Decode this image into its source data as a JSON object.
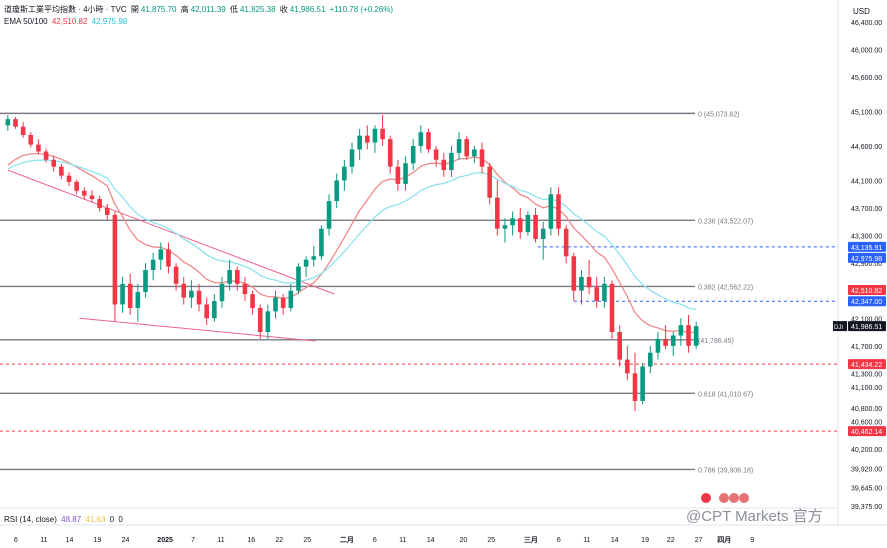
{
  "header": {
    "symbol_line": "道瓊斯工業平均指數 · 4小時 · TVC",
    "open_label": "開",
    "open": "41,875.70",
    "high_label": "高",
    "high": "42,011.39",
    "low_label": "低",
    "low": "41,825.38",
    "close_label": "收",
    "close": "41,986.51",
    "change": "+110.78 (+0.26%)",
    "ema_label": "EMA 50/100",
    "ema50": "42,510.82",
    "ema100": "42,975.98"
  },
  "currency": "USD",
  "rsi": {
    "label": "RSI (14, close)",
    "value1": "48.87",
    "value2": "41.63",
    "zero1": "0",
    "zero2": "0"
  },
  "watermark": "@CPT Markets 官方",
  "colors": {
    "up": "#089981",
    "down": "#f23645",
    "ema50": "#ef8a8a",
    "ema100": "#8fe3ef",
    "blue_tag": "#2962ff",
    "red_tag": "#f23645",
    "dark_tag": "#131722",
    "level": "#787b86"
  },
  "chart_data": {
    "type": "candlestick",
    "title": "",
    "xlabel": "",
    "ylabel": "",
    "ylim": [
      39300,
      46500
    ],
    "grid": false,
    "y_ticks": [
      "46,400.00",
      "46,000.00",
      "45,600.00",
      "45,100.00",
      "44,600.00",
      "44,100.00",
      "43,700.00",
      "43,300.00",
      "42,900.00",
      "42,500.00",
      "42,100.00",
      "41,700.00",
      "41,300.00",
      "41,100.00",
      "40,800.00",
      "40,600.00",
      "40,200.00",
      "39,920.00",
      "39,645.00",
      "39,375.00"
    ],
    "y_tick_values": [
      46400,
      46000,
      45600,
      45100,
      44600,
      44100,
      43700,
      43300,
      42900,
      42500,
      42100,
      41700,
      41300,
      41100,
      40800,
      40600,
      40200,
      39920,
      39645,
      39375
    ],
    "x_ticks": [
      "6",
      "11",
      "14",
      "19",
      "24",
      "2025",
      "7",
      "11",
      "16",
      "22",
      "25",
      "二月",
      "6",
      "11",
      "14",
      "20",
      "25",
      "三月",
      "6",
      "11",
      "14",
      "19",
      "22",
      "27",
      "四月",
      "9"
    ],
    "x_tick_index": [
      6,
      18,
      29,
      41,
      53,
      70,
      82,
      94,
      107,
      119,
      131,
      148,
      160,
      172,
      184,
      198,
      210,
      227,
      239,
      251,
      263,
      276,
      287,
      299,
      310,
      322
    ],
    "fib_levels": [
      {
        "ratio": "0",
        "value": 45073.62,
        "label": "0 (45,073.62)"
      },
      {
        "ratio": "0.236",
        "value": 43522.07,
        "label": "0.236 (43,522.07)"
      },
      {
        "ratio": "0.382",
        "value": 42562.22,
        "label": "0.382 (42,562.22)"
      },
      {
        "ratio": "0.5",
        "value": 41786.45,
        "label": "(41,786.45)"
      },
      {
        "ratio": "0.618",
        "value": 41010.67,
        "label": "0.618 (41,010.67)"
      },
      {
        "ratio": "0.786",
        "value": 39906.18,
        "label": "0.786 (39,906.18)"
      }
    ],
    "price_tags": [
      {
        "value": 43135.91,
        "label": "43,135.91",
        "kind": "blue"
      },
      {
        "value": 42975.98,
        "label": "42,975.98",
        "kind": "blue"
      },
      {
        "value": 42510.82,
        "label": "42,510.82",
        "kind": "red"
      },
      {
        "value": 42347.0,
        "label": "42,347.00",
        "kind": "blue"
      },
      {
        "value": 41986.51,
        "label": "41,986.51",
        "kind": "dark",
        "symbol": "DJI"
      },
      {
        "value": 41434.22,
        "label": "41,434.22",
        "kind": "red"
      },
      {
        "value": 40462.14,
        "label": "40,462.14",
        "kind": "red"
      }
    ],
    "dashed_levels": [
      {
        "value": 43135.91,
        "from": 220,
        "color": "blue"
      },
      {
        "value": 42347.0,
        "from": 235,
        "color": "blue"
      },
      {
        "value": 41434.22,
        "from": 0,
        "color": "red"
      },
      {
        "value": 40462.14,
        "from": 0,
        "color": "red"
      }
    ],
    "channel_lines": [
      {
        "x1": 0,
        "y1": 44250,
        "x2": 120,
        "y2": 42450
      },
      {
        "x1": 30,
        "y1": 42100,
        "x2": 112,
        "y2": 41770
      }
    ],
    "candles": [
      [
        44900,
        45050,
        44820,
        44990
      ],
      [
        44990,
        45020,
        44850,
        44880
      ],
      [
        44880,
        44950,
        44720,
        44760
      ],
      [
        44760,
        44800,
        44580,
        44620
      ],
      [
        44620,
        44700,
        44480,
        44520
      ],
      [
        44520,
        44560,
        44360,
        44400
      ],
      [
        44400,
        44460,
        44230,
        44300
      ],
      [
        44300,
        44340,
        44120,
        44170
      ],
      [
        44170,
        44220,
        44020,
        44080
      ],
      [
        44080,
        44110,
        43900,
        43950
      ],
      [
        43950,
        44000,
        43820,
        43880
      ],
      [
        43880,
        43960,
        43780,
        43830
      ],
      [
        43830,
        43880,
        43650,
        43700
      ],
      [
        43700,
        43760,
        43520,
        43600
      ],
      [
        43600,
        43650,
        42050,
        42300
      ],
      [
        42300,
        42700,
        42180,
        42600
      ],
      [
        42600,
        42750,
        42150,
        42250
      ],
      [
        42250,
        42600,
        42050,
        42480
      ],
      [
        42480,
        42900,
        42400,
        42800
      ],
      [
        42800,
        43050,
        42650,
        42950
      ],
      [
        42950,
        43200,
        42800,
        43100
      ],
      [
        43100,
        43200,
        42750,
        42850
      ],
      [
        42850,
        42900,
        42500,
        42600
      ],
      [
        42600,
        42700,
        42300,
        42400
      ],
      [
        42400,
        42650,
        42250,
        42500
      ],
      [
        42500,
        42600,
        42200,
        42300
      ],
      [
        42300,
        42400,
        42000,
        42100
      ],
      [
        42100,
        42450,
        42050,
        42350
      ],
      [
        42350,
        42700,
        42250,
        42600
      ],
      [
        42600,
        42950,
        42500,
        42800
      ],
      [
        42800,
        42850,
        42500,
        42600
      ],
      [
        42600,
        42700,
        42350,
        42450
      ],
      [
        42450,
        42500,
        42150,
        42250
      ],
      [
        42250,
        42300,
        41800,
        41900
      ],
      [
        41900,
        42300,
        41800,
        42200
      ],
      [
        42200,
        42500,
        42100,
        42400
      ],
      [
        42400,
        42450,
        42150,
        42250
      ],
      [
        42250,
        42600,
        42200,
        42500
      ],
      [
        42500,
        42900,
        42450,
        42850
      ],
      [
        42850,
        43000,
        42700,
        42950
      ],
      [
        42950,
        43150,
        42850,
        43000
      ],
      [
        43000,
        43450,
        42950,
        43400
      ],
      [
        43400,
        43900,
        43300,
        43800
      ],
      [
        43800,
        44200,
        43700,
        44100
      ],
      [
        44100,
        44400,
        43950,
        44300
      ],
      [
        44300,
        44650,
        44200,
        44550
      ],
      [
        44550,
        44850,
        44400,
        44750
      ],
      [
        44750,
        44900,
        44550,
        44650
      ],
      [
        44650,
        44900,
        44500,
        44850
      ],
      [
        44850,
        45050,
        44600,
        44700
      ],
      [
        44700,
        44750,
        44200,
        44300
      ],
      [
        44300,
        44400,
        43950,
        44050
      ],
      [
        44050,
        44450,
        43950,
        44350
      ],
      [
        44350,
        44700,
        44250,
        44600
      ],
      [
        44600,
        44900,
        44500,
        44800
      ],
      [
        44800,
        44850,
        44500,
        44550
      ],
      [
        44550,
        44600,
        44300,
        44400
      ],
      [
        44400,
        44500,
        44150,
        44250
      ],
      [
        44250,
        44600,
        44150,
        44500
      ],
      [
        44500,
        44800,
        44400,
        44700
      ],
      [
        44700,
        44750,
        44400,
        44450
      ],
      [
        44450,
        44600,
        44350,
        44550
      ],
      [
        44550,
        44650,
        44200,
        44300
      ],
      [
        44300,
        44350,
        43750,
        43850
      ],
      [
        43850,
        44100,
        43300,
        43400
      ],
      [
        43400,
        43550,
        43200,
        43450
      ],
      [
        43450,
        43650,
        43300,
        43550
      ],
      [
        43550,
        43700,
        43250,
        43350
      ],
      [
        43350,
        43650,
        43300,
        43600
      ],
      [
        43600,
        43700,
        43200,
        43250
      ],
      [
        43250,
        43500,
        42950,
        43400
      ],
      [
        43400,
        44000,
        43300,
        43900
      ],
      [
        43900,
        44000,
        43300,
        43400
      ],
      [
        43400,
        43450,
        42900,
        43000
      ],
      [
        43000,
        43050,
        42350,
        42500
      ],
      [
        42500,
        42800,
        42300,
        42700
      ],
      [
        42700,
        42950,
        42450,
        42550
      ],
      [
        42550,
        42700,
        42250,
        42350
      ],
      [
        42350,
        42700,
        42250,
        42600
      ],
      [
        42600,
        42650,
        41800,
        41900
      ],
      [
        41900,
        42000,
        41400,
        41500
      ],
      [
        41500,
        41700,
        41200,
        41300
      ],
      [
        41300,
        41600,
        40750,
        40900
      ],
      [
        40900,
        41450,
        40850,
        41400
      ],
      [
        41400,
        41700,
        41300,
        41600
      ],
      [
        41600,
        41900,
        41500,
        41800
      ],
      [
        41800,
        42000,
        41650,
        41700
      ],
      [
        41700,
        41900,
        41550,
        41850
      ],
      [
        41850,
        42100,
        41700,
        42000
      ],
      [
        42000,
        42150,
        41600,
        41700
      ],
      [
        41700,
        42050,
        41650,
        41986
      ]
    ]
  }
}
